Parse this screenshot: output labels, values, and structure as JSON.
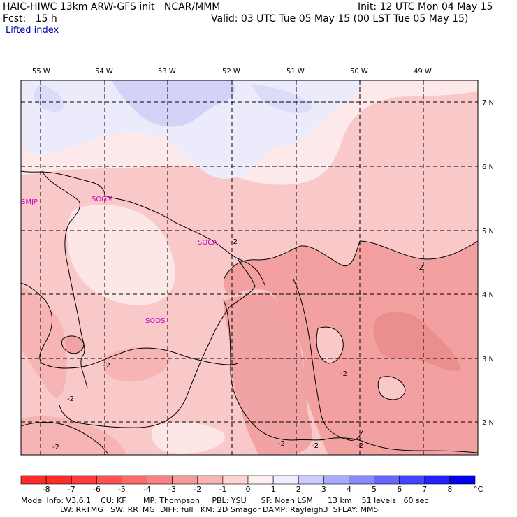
{
  "header": {
    "model_line": "HAIC-HIWC 13km ARW-GFS init   NCAR/MMM",
    "init_line": "Init: 12 UTC Mon 04 May 15",
    "fcst_line": "Fcst:   15 h",
    "valid_line": "Valid: 03 UTC Tue 05 May 15 (00 LST Tue 05 May 15)",
    "field_name": "Lifted index"
  },
  "map": {
    "lon_labels": [
      "55 W",
      "54 W",
      "53 W",
      "52 W",
      "51 W",
      "50 W",
      "49 W"
    ],
    "lat_labels": [
      "7 N",
      "6 N",
      "5 N",
      "4 N",
      "3 N",
      "2 N"
    ],
    "stations": [
      "SMJP",
      "SOGM",
      "SOCA",
      "SOOS"
    ],
    "contour_labels": [
      "-2",
      "-2",
      "-2",
      "-2",
      "-2",
      "-2",
      "-2",
      "-2",
      "-2"
    ]
  },
  "colorbar": {
    "ticks": [
      "-8",
      "-7",
      "-6",
      "-5",
      "-4",
      "-3",
      "-2",
      "-1",
      "0",
      "1",
      "2",
      "3",
      "4",
      "5",
      "6",
      "7",
      "8"
    ],
    "unit": "°C",
    "colors": [
      "#ff2a2a",
      "#ff3a3a",
      "#ff5252",
      "#ff6a6a",
      "#fb8282",
      "#f89a9a",
      "#f9b4b4",
      "#fcd2d2",
      "#fff0f0",
      "#eeeeff",
      "#ccccff",
      "#aaaaff",
      "#8888ff",
      "#6666ff",
      "#4444ff",
      "#2222ff",
      "#0000ee"
    ]
  },
  "footer": {
    "line1": "Model Info: V3.6.1    CU: KF       MP: Thompson     PBL: YSU      SF: Noah LSM      13 km    51 levels   60 sec",
    "line2": "                LW: RRTMG   SW: RRTMG  DIFF: full   KM: 2D Smagor DAMP: Rayleigh3  SFLAY: MM5"
  }
}
